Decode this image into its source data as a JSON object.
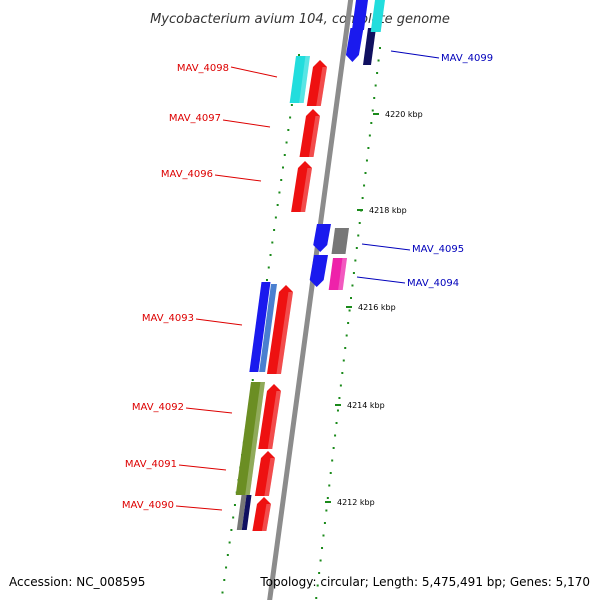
{
  "title": "Mycobacterium avium 104, complete genome",
  "footer": {
    "accession": "Accession: NC_008595",
    "summary": "Topology: circular; Length: 5,475,491 bp; Genes: 5,170"
  },
  "colors": {
    "backbone": "#8c8c8c",
    "tick": "#1a8a1a",
    "forward_label": "#dd0000",
    "reverse_label": "#0000bb"
  },
  "chart_data": {
    "type": "diagram",
    "kbp_ticks": [
      {
        "value": 4220,
        "label": "4220 kbp"
      },
      {
        "value": 4218,
        "label": "4218 kbp"
      },
      {
        "value": 4216,
        "label": "4216 kbp"
      },
      {
        "value": 4214,
        "label": "4214 kbp"
      },
      {
        "value": 4212,
        "label": "4212 kbp"
      }
    ],
    "labeled_genes": [
      {
        "name": "MAV_4099",
        "strand": "reverse",
        "color": "#1a1aee"
      },
      {
        "name": "MAV_4098",
        "strand": "forward",
        "color": "#ee1111"
      },
      {
        "name": "MAV_4097",
        "strand": "forward",
        "color": "#ee1111"
      },
      {
        "name": "MAV_4096",
        "strand": "forward",
        "color": "#ee1111"
      },
      {
        "name": "MAV_4095",
        "strand": "reverse",
        "color": "#1a1aee"
      },
      {
        "name": "MAV_4094",
        "strand": "reverse",
        "color": "#1a1aee"
      },
      {
        "name": "MAV_4093",
        "strand": "forward",
        "color": "#ee1111"
      },
      {
        "name": "MAV_4092",
        "strand": "forward",
        "color": "#ee1111"
      },
      {
        "name": "MAV_4091",
        "strand": "forward",
        "color": "#ee1111"
      },
      {
        "name": "MAV_4090",
        "strand": "forward",
        "color": "#ee1111"
      }
    ]
  }
}
